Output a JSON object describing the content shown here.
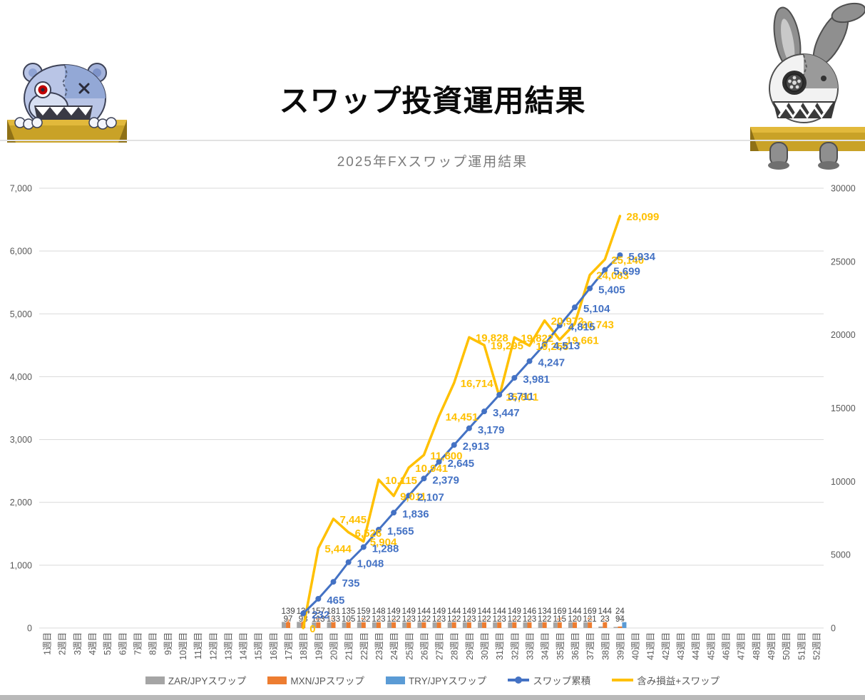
{
  "page": {
    "title": "スワップ投資運用結果"
  },
  "decor": {
    "left_mascot": "teddy-bear-plush",
    "right_mascot": "rabbit-plush",
    "box_color": "#C9A227"
  },
  "colors": {
    "zar_bar": "#A5A5A5",
    "mxn_bar": "#ED7D31",
    "try_bar": "#5B9BD5",
    "swap_line": "#4472C4",
    "profit_line": "#FFC000",
    "gridline": "#D9D9D9",
    "axis_text": "#595959"
  },
  "chart_data": {
    "type": "combo",
    "title": "2025年FXスワップ運用結果",
    "grid": "horizontal-on",
    "legend_position": "bottom",
    "x_categories": [
      "1週目",
      "2週目",
      "3週目",
      "4週目",
      "5週目",
      "6週目",
      "7週目",
      "8週目",
      "9週目",
      "10週目",
      "11週目",
      "12週目",
      "13週目",
      "14週目",
      "15週目",
      "16週目",
      "17週目",
      "18週目",
      "19週目",
      "20週目",
      "21週目",
      "22週目",
      "23週目",
      "24週目",
      "25週目",
      "26週目",
      "27週目",
      "28週目",
      "29週目",
      "30週目",
      "31週目",
      "32週目",
      "33週目",
      "34週目",
      "35週目",
      "36週目",
      "37週目",
      "38週目",
      "39週目",
      "40週目",
      "41週目",
      "42週目",
      "43週目",
      "44週目",
      "45週目",
      "46週目",
      "47週目",
      "48週目",
      "49週目",
      "50週目",
      "51週目",
      "52週目"
    ],
    "left_axis": {
      "min": 0,
      "max": 7000,
      "ticks": [
        "0",
        "1,000",
        "2,000",
        "3,000",
        "4,000",
        "5,000",
        "6,000",
        "7,000"
      ]
    },
    "right_axis": {
      "min": 0,
      "max": 30000,
      "ticks": [
        "0",
        "5000",
        "10000",
        "15000",
        "20000",
        "25000",
        "30000"
      ]
    },
    "series": [
      {
        "name": "ZAR/JPYスワップ",
        "type": "bar",
        "axis": "left",
        "color": "#A5A5A5",
        "label_row": "bottom",
        "start_week": 17,
        "values": [
          97,
          98,
          113,
          133,
          105,
          122,
          123,
          122,
          123,
          122,
          123,
          122,
          123,
          122,
          123,
          122,
          123,
          122,
          115,
          120,
          121,
          23,
          17
        ]
      },
      {
        "name": "MXN/JPスワップ",
        "type": "bar",
        "axis": "left",
        "color": "#ED7D31",
        "label_row": "top",
        "start_week": 17,
        "values": [
          139,
          134,
          157,
          181,
          135,
          159,
          148,
          149,
          149,
          144,
          149,
          144,
          149,
          144,
          144,
          149,
          146,
          134,
          169,
          144,
          169,
          144,
          24
        ]
      },
      {
        "name": "TRY/JPYスワップ",
        "type": "bar",
        "axis": "left",
        "color": "#5B9BD5",
        "label_row": "bottom",
        "start_week": 39,
        "values": [
          94
        ]
      },
      {
        "name": "スワップ累積",
        "type": "line",
        "axis": "left",
        "color": "#4472C4",
        "marker": true,
        "start_week": 18,
        "labels": [
          "232",
          "465",
          "735",
          "1,048",
          "1,288",
          "1,565",
          "1,836",
          "2,107",
          "2,379",
          "2,645",
          "2,913",
          "3,179",
          "3,447",
          "3,711",
          "3,981",
          "4,247",
          "4,513",
          "4,815",
          "5,104",
          "5,405",
          "5,699",
          "5,934"
        ]
      },
      {
        "name": "含み損益+スワップ",
        "type": "line",
        "axis": "right",
        "color": "#FFC000",
        "marker": false,
        "start_week": 18,
        "labels": [
          "0",
          "5,444",
          "7,445",
          "6,526",
          "5,904",
          "10,115",
          "9,011",
          "10,941",
          "11,800",
          "14,451",
          "16,714",
          "19,828",
          "19,295",
          "15,801",
          "19,822",
          "19,258",
          "20,972",
          "19,661",
          "20,743",
          "24,083",
          "25,140",
          "28,099"
        ]
      }
    ]
  }
}
